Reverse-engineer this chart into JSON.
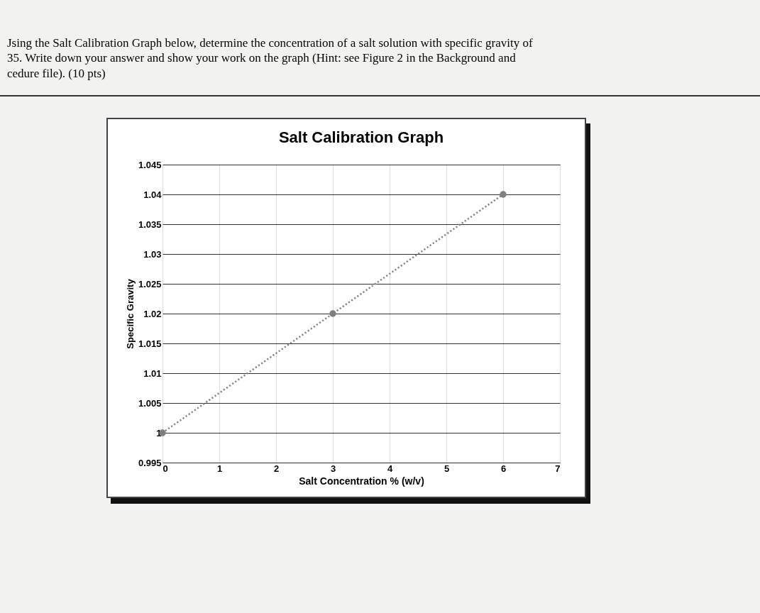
{
  "chart_data": {
    "type": "line",
    "title": "Salt Calibration Graph",
    "xlabel": "Salt Concentration % (w/v)",
    "ylabel": "Specific Gravity",
    "annotations": [
      "Jsing the Salt Calibration Graph below, determine the concentration of a salt solution with specific gravity of",
      "35. Write down your answer and show your work on the graph (Hint: see Figure 2 in the Background and",
      "cedure file). (10 pts)"
    ],
    "x": [
      0,
      3,
      6
    ],
    "series": [
      {
        "color": "#7f7f7f",
        "values": [
          1,
          1.02,
          1.04
        ]
      }
    ],
    "xlim": [
      0,
      7
    ],
    "xticks": [
      0,
      1,
      2,
      3,
      4,
      5,
      6,
      7
    ],
    "ylim": [
      0.995,
      1.045
    ],
    "yticks": [
      0.995,
      1,
      1.005,
      1.01,
      1.015,
      1.02,
      1.025,
      1.03,
      1.035,
      1.04,
      1.045
    ],
    "grid": true,
    "marker": "circle",
    "line_style": "dotted"
  }
}
